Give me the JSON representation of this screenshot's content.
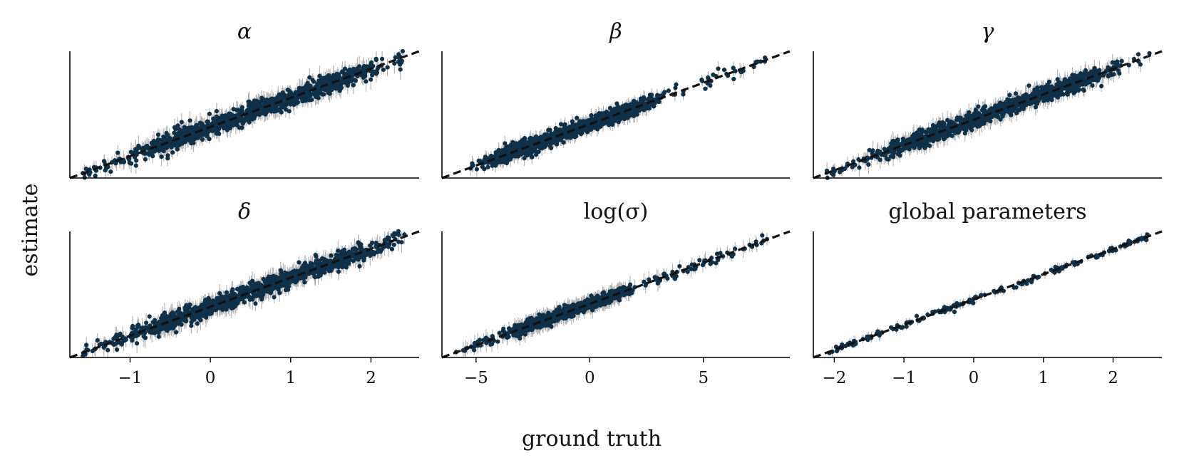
{
  "figure": {
    "xlabel": "ground truth",
    "ylabel": "estimate",
    "colors": {
      "points": "#0e3049",
      "errorbars": "#b3b3b3",
      "identity_line": "#111111"
    }
  },
  "chart_data": [
    {
      "type": "scatter",
      "title": "α",
      "xlim": [
        -1.75,
        2.6
      ],
      "ylim": [
        -1.75,
        2.6
      ],
      "xticks": [],
      "identity_line": true,
      "n_points": 1100,
      "noise": 0.16,
      "err": 0.3,
      "grid": false
    },
    {
      "type": "scatter",
      "title": "β",
      "xlim": [
        -6.5,
        8.8
      ],
      "ylim": [
        -6.5,
        8.8
      ],
      "xticks": [],
      "identity_line": true,
      "n_points": 1100,
      "noise": 0.45,
      "err": 0.8,
      "grid": false
    },
    {
      "type": "scatter",
      "title": "γ",
      "xlim": [
        -1.75,
        2.6
      ],
      "ylim": [
        -1.75,
        2.6
      ],
      "xticks": [],
      "identity_line": true,
      "n_points": 1100,
      "noise": 0.14,
      "err": 0.28,
      "grid": false
    },
    {
      "type": "scatter",
      "title": "δ",
      "xlim": [
        -1.75,
        2.6
      ],
      "ylim": [
        -1.75,
        2.6
      ],
      "xticks": [
        -1,
        0,
        1,
        2
      ],
      "xticklabels": [
        "−1",
        "0",
        "1",
        "2"
      ],
      "identity_line": true,
      "n_points": 1100,
      "noise": 0.15,
      "err": 0.3,
      "grid": false
    },
    {
      "type": "scatter",
      "title": "log(σ)",
      "xlim": [
        -6.5,
        8.8
      ],
      "ylim": [
        -6.5,
        8.8
      ],
      "xticks": [
        -5,
        0,
        5
      ],
      "xticklabels": [
        "−5",
        "0",
        "5"
      ],
      "identity_line": true,
      "n_points": 1100,
      "noise": 0.3,
      "err": 0.9,
      "grid": false
    },
    {
      "type": "scatter",
      "title": "global parameters",
      "xlim": [
        -2.3,
        2.7
      ],
      "ylim": [
        -2.3,
        2.7
      ],
      "xticks": [
        -2,
        -1,
        0,
        1,
        2
      ],
      "xticklabels": [
        "−2",
        "−1",
        "0",
        "1",
        "2"
      ],
      "identity_line": true,
      "n_points": 180,
      "noise": 0.06,
      "err": 0.18,
      "grid": false
    }
  ]
}
